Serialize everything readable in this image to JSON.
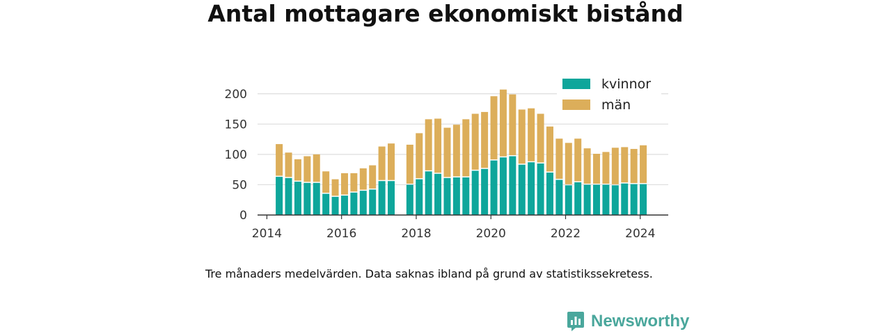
{
  "chart_data": {
    "type": "bar",
    "stacked": true,
    "title": "Antal mottagare ekonomiskt bistånd",
    "xlabel": "",
    "ylabel": "",
    "ylim": [
      0,
      225
    ],
    "yticks": [
      0,
      50,
      100,
      150,
      200
    ],
    "xticks": [
      "2014",
      "2016",
      "2018",
      "2020",
      "2022",
      "2024"
    ],
    "xlim": [
      2013.75,
      2024.75
    ],
    "grid": true,
    "legend": "top-right",
    "x": [
      2014.33,
      2014.58,
      2014.83,
      2015.08,
      2015.33,
      2015.58,
      2015.83,
      2016.08,
      2016.33,
      2016.58,
      2016.83,
      2017.08,
      2017.33,
      2017.58,
      2017.83,
      2018.08,
      2018.33,
      2018.58,
      2018.83,
      2019.08,
      2019.33,
      2019.58,
      2019.83,
      2020.08,
      2020.33,
      2020.58,
      2020.83,
      2021.08,
      2021.33,
      2021.58,
      2021.83,
      2022.08,
      2022.33,
      2022.58,
      2022.83,
      2023.08,
      2023.33,
      2023.58,
      2023.83,
      2024.08
    ],
    "series": [
      {
        "name": "kvinnor",
        "color": "#0ea69b",
        "values": [
          63,
          61,
          55,
          53,
          53,
          35,
          30,
          32,
          37,
          40,
          42,
          56,
          56,
          null,
          50,
          59,
          72,
          68,
          61,
          62,
          62,
          73,
          76,
          90,
          95,
          97,
          83,
          87,
          85,
          70,
          58,
          49,
          54,
          50,
          50,
          50,
          49,
          52,
          51,
          51
        ]
      },
      {
        "name": "män",
        "color": "#dcae5a",
        "values": [
          54,
          42,
          37,
          44,
          47,
          37,
          29,
          37,
          32,
          37,
          40,
          57,
          62,
          null,
          66,
          76,
          86,
          91,
          83,
          87,
          96,
          94,
          94,
          106,
          112,
          102,
          91,
          89,
          82,
          76,
          68,
          70,
          72,
          60,
          51,
          54,
          62,
          60,
          58,
          64
        ]
      }
    ]
  },
  "caption": "Tre månaders medelvärden. Data saknas ibland på grund av statistikssekretess.",
  "brand": {
    "name": "Newsworthy",
    "color": "#4aa79c"
  }
}
